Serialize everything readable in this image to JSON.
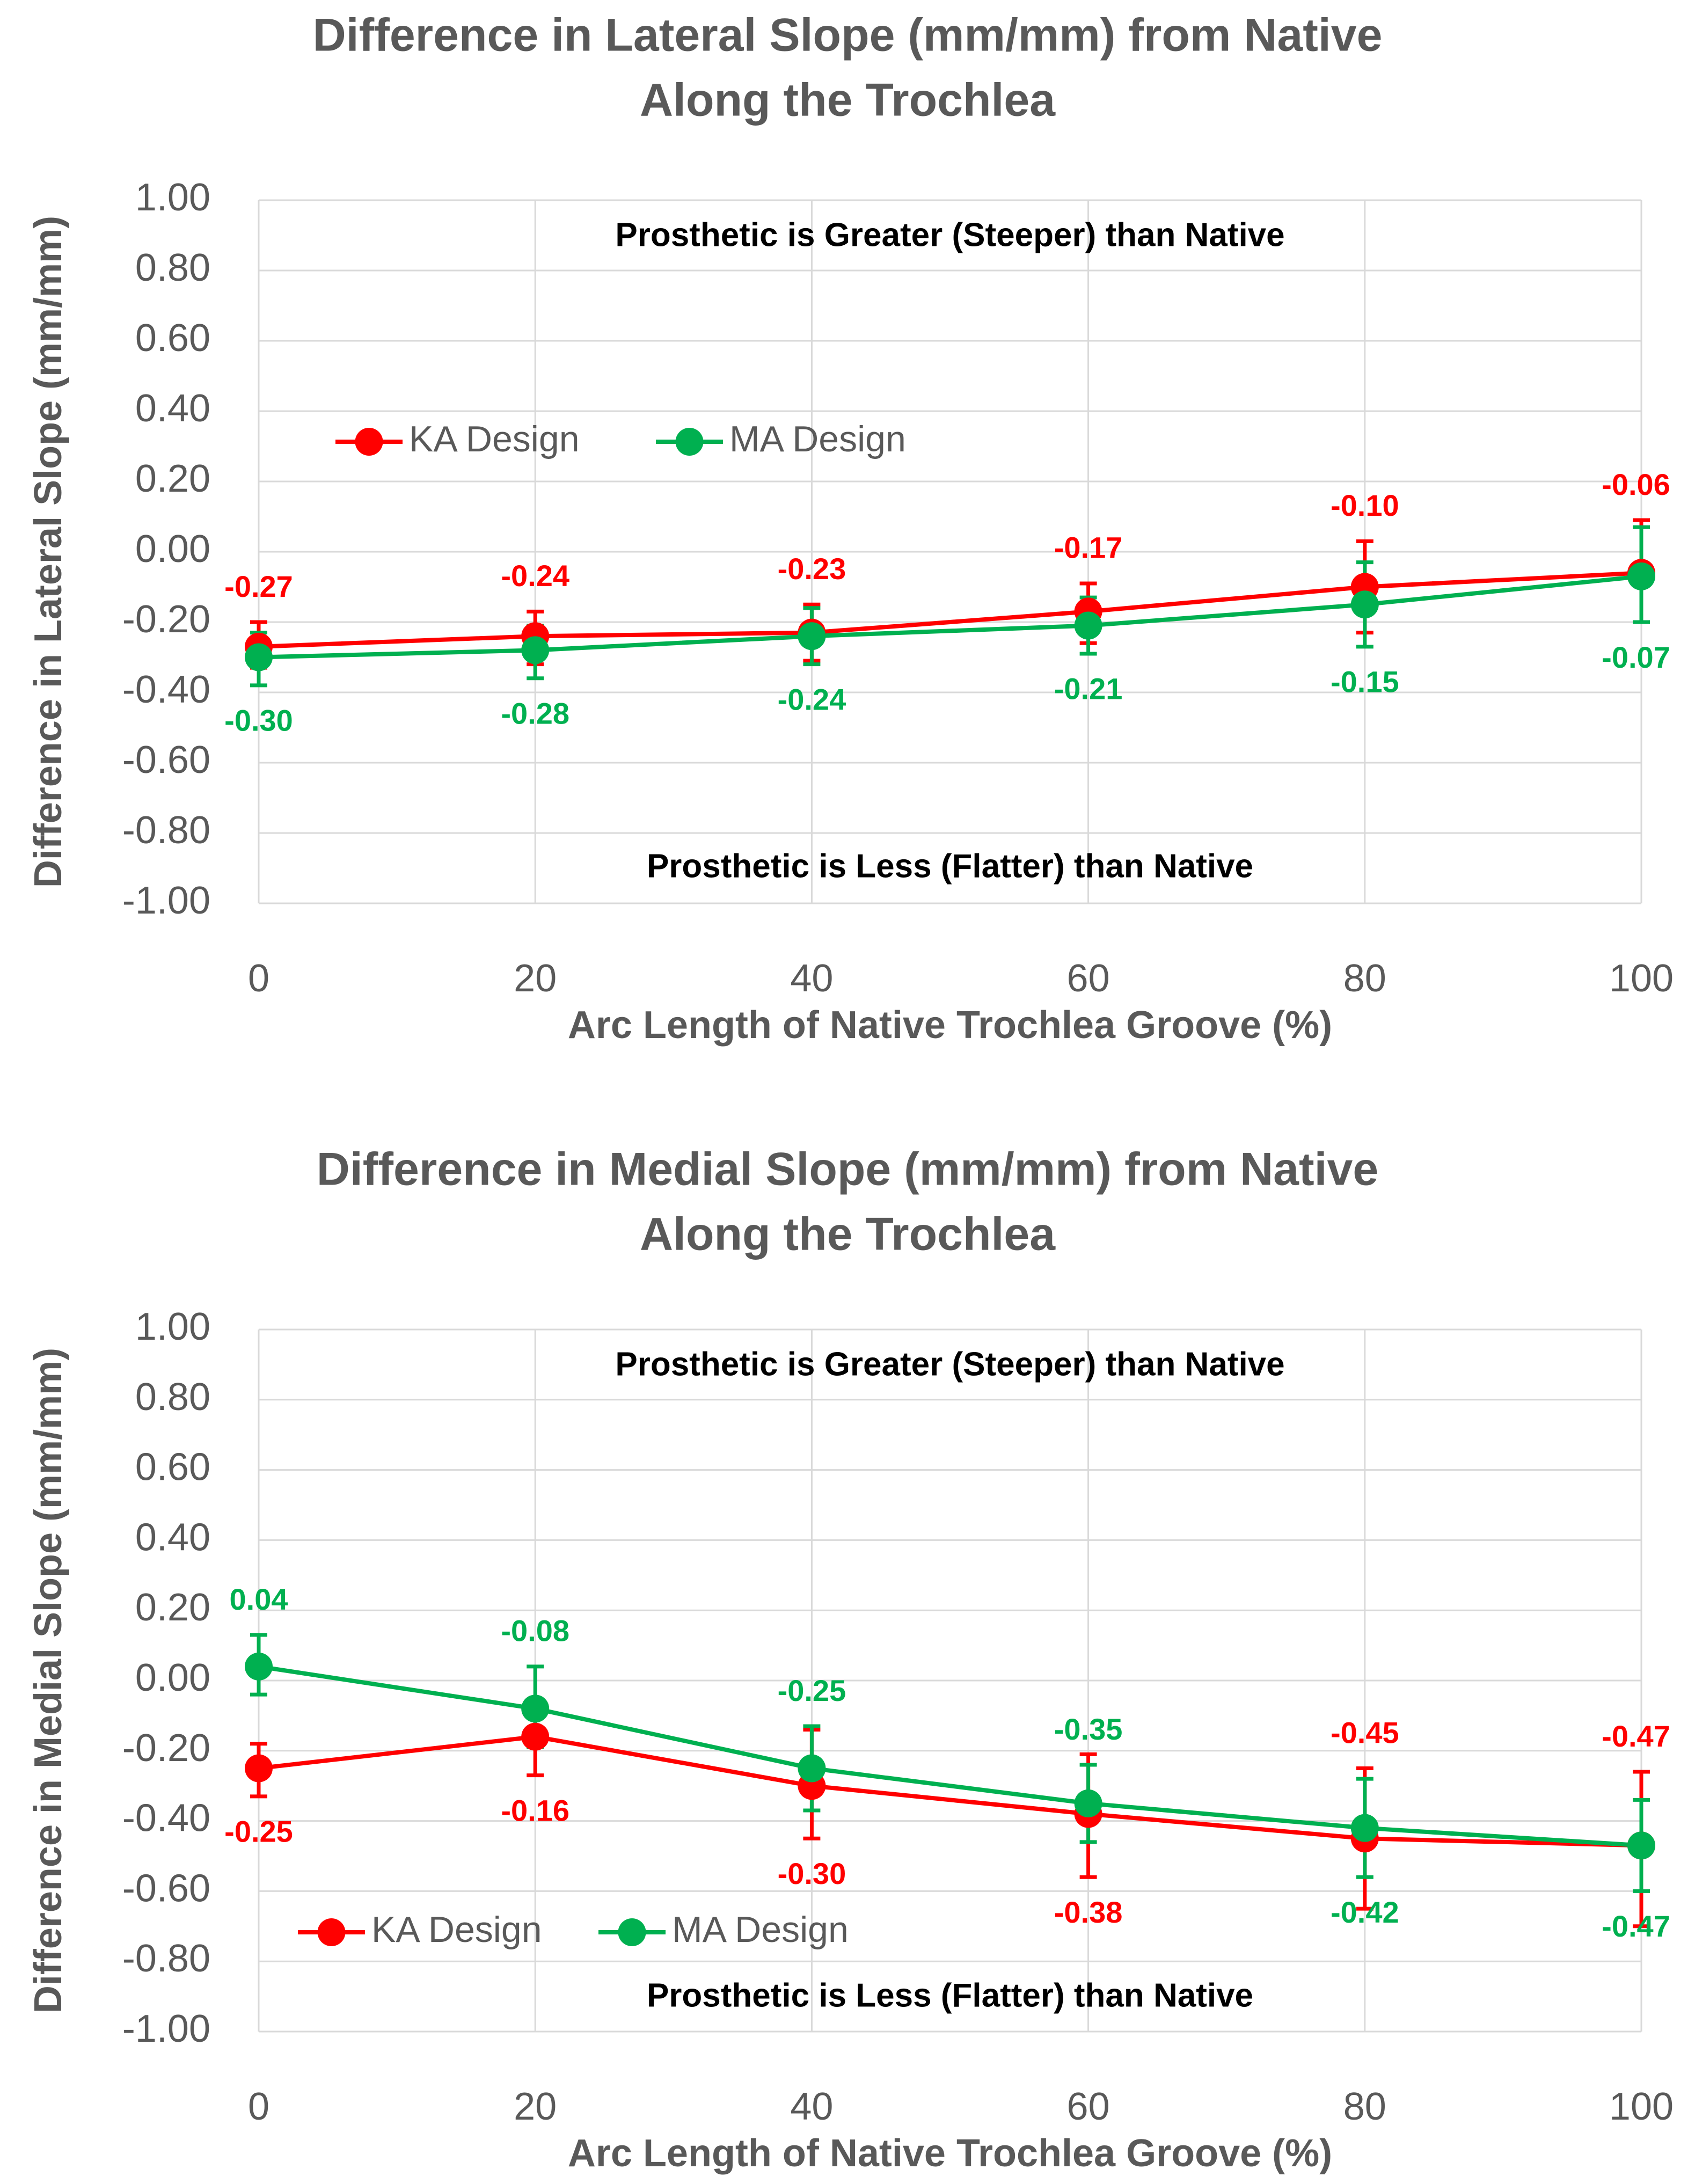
{
  "colors": {
    "ka": "#ff0000",
    "ma": "#00b050",
    "text": "#595959",
    "grid": "#d9d9d9"
  },
  "chart_data": [
    {
      "type": "line",
      "title_lines": [
        "Difference in Lateral Slope (mm/mm) from Native",
        "Along the Trochlea"
      ],
      "xlabel": "Arc Length of Native Trochlea Groove (%)",
      "ylabel": "Difference in Lateral Slope (mm/mm)",
      "xlim": [
        0,
        100
      ],
      "ylim": [
        -1.0,
        1.0
      ],
      "xticks": [
        0,
        20,
        40,
        60,
        80,
        100
      ],
      "yticks": [
        1.0,
        0.8,
        0.6,
        0.4,
        0.2,
        0.0,
        -0.2,
        -0.4,
        -0.6,
        -0.8,
        -1.0
      ],
      "ytick_labels": [
        "1.00",
        "0.80",
        "0.60",
        "0.40",
        "0.20",
        "0.00",
        "-0.20",
        "-0.40",
        "-0.60",
        "-0.80",
        "-1.00"
      ],
      "xtick_labels": [
        "0",
        "20",
        "40",
        "60",
        "80",
        "100"
      ],
      "grid": "vertical and horizontal",
      "annotation_top": "Prosthetic is Greater (Steeper) than Native",
      "annotation_bottom": "Prosthetic is Less (Flatter) than Native",
      "legend_position": "upper-left",
      "x": [
        0,
        20,
        40,
        60,
        80,
        100
      ],
      "series": [
        {
          "name": "KA Design",
          "color_key": "ka",
          "values": [
            -0.27,
            -0.24,
            -0.23,
            -0.17,
            -0.1,
            -0.06
          ],
          "err_low": [
            -0.33,
            -0.32,
            -0.31,
            -0.26,
            -0.23,
            -0.2
          ],
          "err_high": [
            -0.2,
            -0.17,
            -0.15,
            -0.09,
            0.03,
            0.09
          ],
          "labels": [
            "-0.27",
            "-0.24",
            "-0.23",
            "-0.17",
            "-0.10",
            "-0.06"
          ],
          "label_side": [
            "above",
            "above",
            "above",
            "above",
            "above",
            "above"
          ]
        },
        {
          "name": "MA Design",
          "color_key": "ma",
          "values": [
            -0.3,
            -0.28,
            -0.24,
            -0.21,
            -0.15,
            -0.07
          ],
          "err_low": [
            -0.38,
            -0.36,
            -0.32,
            -0.29,
            -0.27,
            -0.2
          ],
          "err_high": [
            -0.23,
            -0.21,
            -0.16,
            -0.13,
            -0.03,
            0.07
          ],
          "labels": [
            "-0.30",
            "-0.28",
            "-0.24",
            "-0.21",
            "-0.15",
            "-0.07"
          ],
          "label_side": [
            "below",
            "below",
            "below",
            "below",
            "below",
            "below"
          ]
        }
      ]
    },
    {
      "type": "line",
      "title_lines": [
        "Difference in Medial Slope (mm/mm) from Native",
        "Along the Trochlea"
      ],
      "xlabel": "Arc Length of Native Trochlea Groove (%)",
      "ylabel": "Difference in Medial Slope (mm/mm)",
      "xlim": [
        0,
        100
      ],
      "ylim": [
        -1.0,
        1.0
      ],
      "xticks": [
        0,
        20,
        40,
        60,
        80,
        100
      ],
      "yticks": [
        1.0,
        0.8,
        0.6,
        0.4,
        0.2,
        0.0,
        -0.2,
        -0.4,
        -0.6,
        -0.8,
        -1.0
      ],
      "ytick_labels": [
        "1.00",
        "0.80",
        "0.60",
        "0.40",
        "0.20",
        "0.00",
        "-0.20",
        "-0.40",
        "-0.60",
        "-0.80",
        "-1.00"
      ],
      "xtick_labels": [
        "0",
        "20",
        "40",
        "60",
        "80",
        "100"
      ],
      "grid": "vertical and horizontal",
      "annotation_top": "Prosthetic is Greater (Steeper) than Native",
      "annotation_bottom": "Prosthetic is Less (Flatter) than Native",
      "legend_position": "lower-left",
      "x": [
        0,
        20,
        40,
        60,
        80,
        100
      ],
      "series": [
        {
          "name": "KA Design",
          "color_key": "ka",
          "values": [
            -0.25,
            -0.16,
            -0.3,
            -0.38,
            -0.45,
            -0.47
          ],
          "err_low": [
            -0.33,
            -0.27,
            -0.45,
            -0.56,
            -0.65,
            -0.7
          ],
          "err_high": [
            -0.18,
            -0.06,
            -0.14,
            -0.21,
            -0.25,
            -0.26
          ],
          "labels": [
            "-0.25",
            "-0.16",
            "-0.30",
            "-0.38",
            "-0.45",
            "-0.47"
          ],
          "label_side": [
            "below",
            "below",
            "below",
            "below",
            "above",
            "above"
          ]
        },
        {
          "name": "MA Design",
          "color_key": "ma",
          "values": [
            0.04,
            -0.08,
            -0.25,
            -0.35,
            -0.42,
            -0.47
          ],
          "err_low": [
            -0.04,
            -0.19,
            -0.37,
            -0.46,
            -0.56,
            -0.6
          ],
          "err_high": [
            0.13,
            0.04,
            -0.13,
            -0.24,
            -0.28,
            -0.34
          ],
          "labels": [
            "0.04",
            "-0.08",
            "-0.25",
            "-0.35",
            "-0.42",
            "-0.47"
          ],
          "label_side": [
            "above",
            "above",
            "above",
            "above",
            "below",
            "below"
          ]
        }
      ]
    }
  ]
}
